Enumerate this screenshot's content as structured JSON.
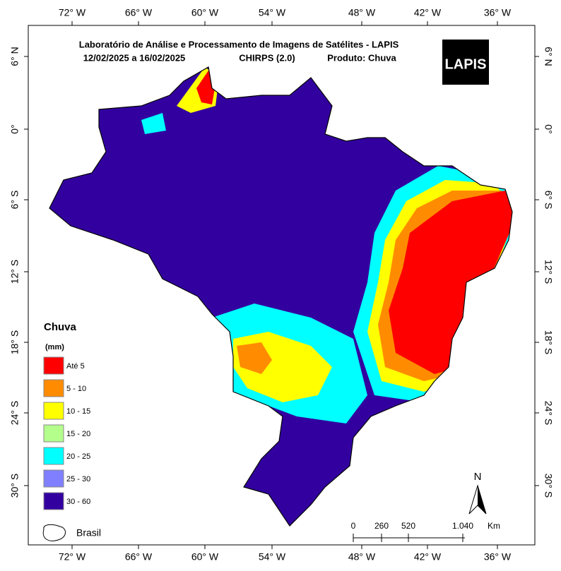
{
  "header": {
    "title": "Laboratório de Análise e Processamento de Imagens de Satélites - LAPIS",
    "period": "12/02/2025  a 16/02/2025",
    "source": "CHIRPS (2.0)",
    "product": "Produto: Chuva",
    "logo": "LAPIS"
  },
  "axes": {
    "longitudes": [
      "72° W",
      "66° W",
      "60° W",
      "54° W",
      "48° W",
      "42° W",
      "36° W"
    ],
    "latitudes": [
      "6° N",
      "0°",
      "6° S",
      "12° S",
      "18° S",
      "24° S",
      "30° S"
    ]
  },
  "legend": {
    "title": "Chuva",
    "unit": "(mm)",
    "boundary": "Brasil",
    "items": [
      {
        "label": "Até 5",
        "color": "#ff0000"
      },
      {
        "label": "5 - 10",
        "color": "#ff8c00"
      },
      {
        "label": "10 - 15",
        "color": "#ffff00"
      },
      {
        "label": "15 - 20",
        "color": "#b4ff8c"
      },
      {
        "label": "20 - 25",
        "color": "#00ffff"
      },
      {
        "label": "25 - 30",
        "color": "#7f7fff"
      },
      {
        "label": "30 - 60",
        "color": "#3300a0"
      }
    ]
  },
  "scale_bar": {
    "labels": [
      "0",
      "260",
      "520",
      "1.040"
    ],
    "unit": "Km"
  },
  "north": "N"
}
